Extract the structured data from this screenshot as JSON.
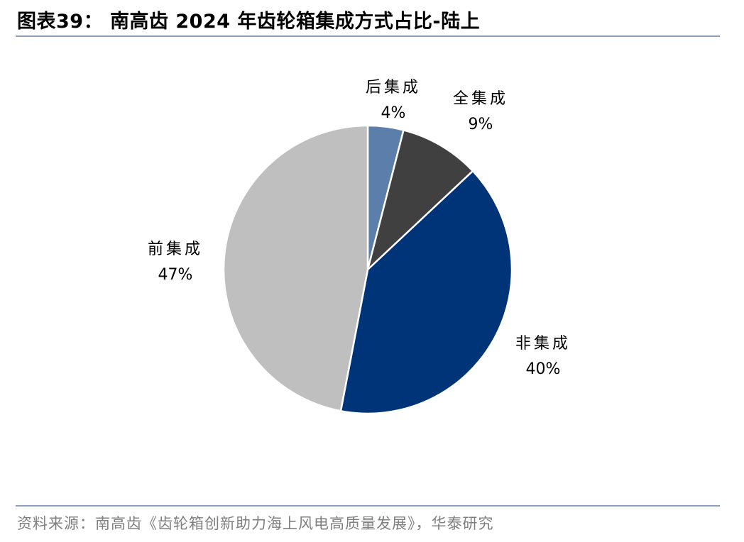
{
  "header": {
    "title": "图表39：  南高齿 2024 年齿轮箱集成方式占比-陆上"
  },
  "footer": {
    "source": "资料来源：南高齿《齿轮箱创新助力海上风电高质量发展》，华泰研究"
  },
  "chart_data": {
    "type": "pie",
    "title": "",
    "slices": [
      {
        "label": "后集成",
        "value": 4,
        "value_label": "4%",
        "color": "#5b7faa"
      },
      {
        "label": "全集成",
        "value": 9,
        "value_label": "9%",
        "color": "#404040"
      },
      {
        "label": "非集成",
        "value": 40,
        "value_label": "40%",
        "color": "#003478"
      },
      {
        "label": "前集成",
        "value": 47,
        "value_label": "47%",
        "color": "#bfbfbf"
      }
    ],
    "start_angle_deg": 0,
    "direction": "clockwise",
    "legend": "none"
  }
}
